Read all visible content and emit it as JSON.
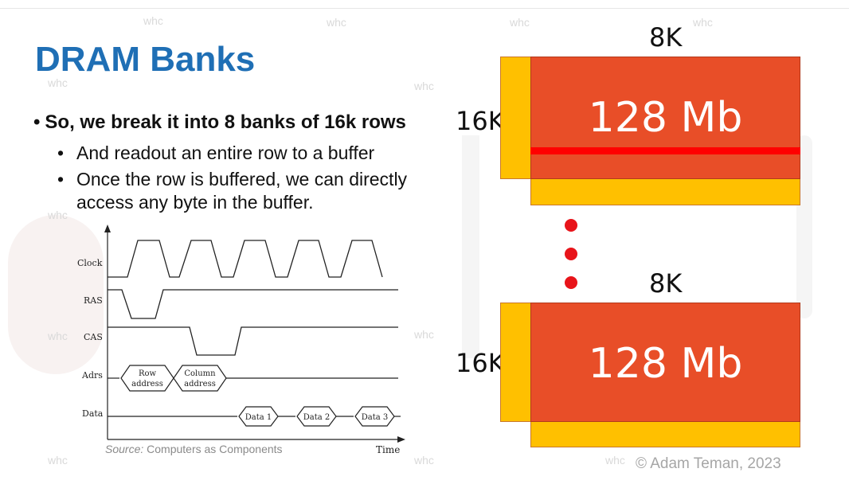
{
  "slide": {
    "title": "DRAM Banks",
    "bullet_main": "So, we break it into 8 banks of 16k rows",
    "bullet_subs": [
      "And readout an entire row to a buffer",
      "Once the row is buffered, we can directly access any byte in the buffer."
    ],
    "source_prefix": "Source:",
    "source_text": "Computers as Components",
    "copyright": "© Adam Teman, 2023",
    "watermark_text": "whc"
  },
  "timing_diagram": {
    "signals": [
      "Clock",
      "RAS",
      "CAS",
      "Adrs",
      "Data"
    ],
    "addr_boxes": [
      {
        "line1": "Row",
        "line2": "address"
      },
      {
        "line1": "Column",
        "line2": "address"
      }
    ],
    "data_boxes": [
      "Data 1",
      "Data 2",
      "Data 3"
    ],
    "x_axis_label": "Time"
  },
  "banks": [
    {
      "cols_label": "8K",
      "rows_label": "16K",
      "capacity": "128 Mb",
      "row_highlighted": true
    },
    {
      "cols_label": "8K",
      "rows_label": "16K",
      "capacity": "128 Mb",
      "row_highlighted": false
    }
  ],
  "colors": {
    "title": "#1f6fb5",
    "bank_fill": "#e84e28",
    "buffer_fill": "#ffc000",
    "row_highlight": "#ff0000",
    "ellipsis": "#e8141a"
  }
}
